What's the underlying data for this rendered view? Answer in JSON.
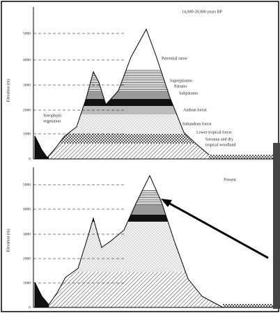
{
  "panels": [
    {
      "period": "14,000-20,000 years BP",
      "y_axis_label": "Elevation (m)",
      "ticks": [
        "5000",
        "4000",
        "3000",
        "2000",
        "1000",
        "0"
      ],
      "zones": [
        {
          "lines": [
            "Perennial snow"
          ]
        },
        {
          "lines": [
            "Superpáramo"
          ]
        },
        {
          "lines": [
            "Páramo"
          ]
        },
        {
          "lines": [
            "Subpáramo"
          ]
        },
        {
          "lines": [
            "Andean forest"
          ]
        },
        {
          "lines": [
            "Subandean forest"
          ]
        },
        {
          "lines": [
            "Lower tropical forest"
          ]
        },
        {
          "lines": [
            "Savanna and dry",
            "tropical woodland"
          ]
        },
        {
          "lines": [
            "Xerophytic",
            "vegetation"
          ]
        }
      ]
    },
    {
      "period": "Present",
      "y_axis_label": "Elevation (m)",
      "ticks": [
        "5000",
        "4000",
        "3000",
        "2000",
        "1000",
        "0"
      ]
    }
  ]
}
